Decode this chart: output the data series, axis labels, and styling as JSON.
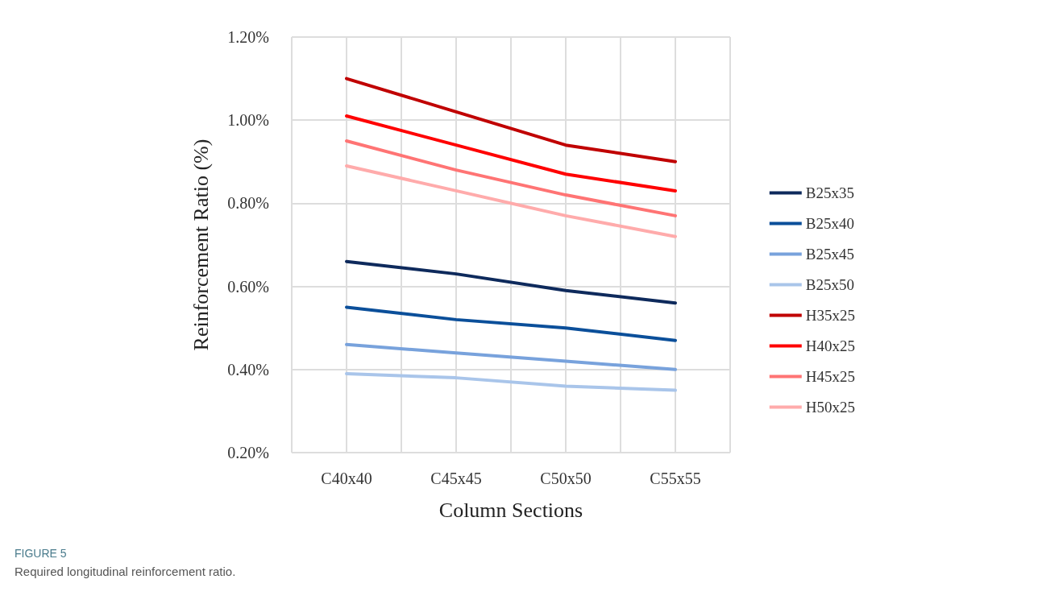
{
  "chart_data": {
    "type": "line",
    "xlabel": "Column Sections",
    "ylabel": "Reinforcement Ratio (%)",
    "categories": [
      "C40x40",
      "C45x45",
      "C50x50",
      "C55x55"
    ],
    "series": [
      {
        "name": "B25x35",
        "color": "#0e2a5c",
        "values": [
          0.66,
          0.63,
          0.59,
          0.56
        ]
      },
      {
        "name": "B25x40",
        "color": "#0b4f9a",
        "values": [
          0.55,
          0.52,
          0.5,
          0.47
        ]
      },
      {
        "name": "B25x45",
        "color": "#78a2dc",
        "values": [
          0.46,
          0.44,
          0.42,
          0.4
        ]
      },
      {
        "name": "B25x50",
        "color": "#a9c5ea",
        "values": [
          0.39,
          0.38,
          0.36,
          0.35
        ]
      },
      {
        "name": "H35x25",
        "color": "#c00000",
        "values": [
          1.1,
          1.02,
          0.94,
          0.9
        ]
      },
      {
        "name": "H40x25",
        "color": "#ff0000",
        "values": [
          1.01,
          0.94,
          0.87,
          0.83
        ]
      },
      {
        "name": "H45x25",
        "color": "#ff7474",
        "values": [
          0.95,
          0.88,
          0.82,
          0.77
        ]
      },
      {
        "name": "H50x25",
        "color": "#ffabab",
        "values": [
          0.89,
          0.83,
          0.77,
          0.72
        ]
      }
    ],
    "ylim": [
      0.2,
      1.2
    ],
    "yticks": [
      {
        "value": 0.2,
        "label": "0.20%"
      },
      {
        "value": 0.4,
        "label": "0.40%"
      },
      {
        "value": 0.6,
        "label": "0.60%"
      },
      {
        "value": 0.8,
        "label": "0.80%"
      },
      {
        "value": 1.0,
        "label": "1.00%"
      },
      {
        "value": 1.2,
        "label": "1.20%"
      }
    ],
    "grid": true,
    "legend": "right",
    "marker": "none",
    "line_style": "solid",
    "annotations": [
      "FIGURE 5",
      "Required longitudinal reinforcement ratio."
    ]
  }
}
